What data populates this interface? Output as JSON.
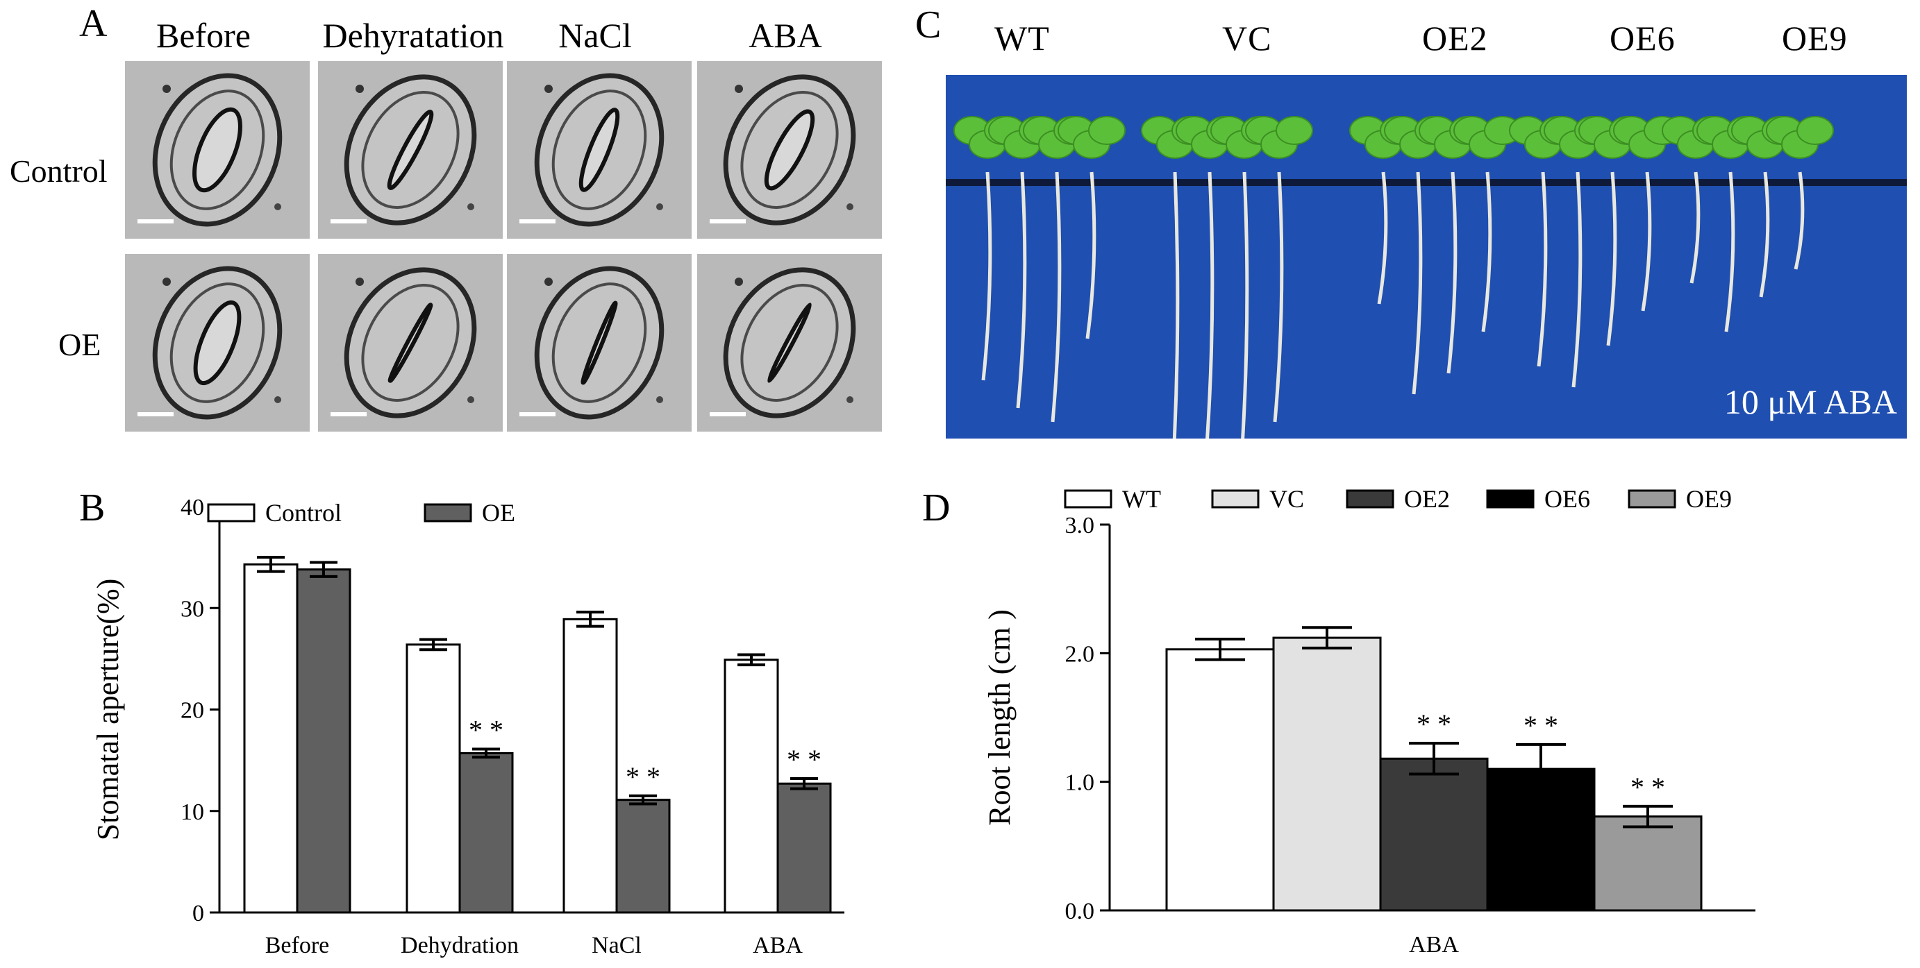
{
  "panels": {
    "a": {
      "letter": "A",
      "columns": [
        "Before",
        "Dehyratation",
        "NaCl",
        "ABA"
      ],
      "rows": [
        "Control",
        "OE"
      ]
    },
    "c": {
      "letter": "C",
      "genotypes": [
        "WT",
        "VC",
        "OE2",
        "OE6",
        "OE9"
      ],
      "treatment_label": "10 μM ABA",
      "colors": {
        "background": "#1f4fb0",
        "band": "#0f1a3a",
        "leaf": "#5bbf3a",
        "root": "#e8e8e0"
      }
    }
  },
  "chart_data": [
    {
      "panel": "B",
      "type": "bar",
      "categories": [
        "Before",
        "Dehydration",
        "NaCl",
        "ABA"
      ],
      "series": [
        {
          "name": "Control",
          "values": [
            34.3,
            26.4,
            28.9,
            24.9
          ],
          "errors": [
            0.7,
            0.5,
            0.7,
            0.5
          ],
          "color": "#ffffff",
          "sig": [
            "",
            "",
            "",
            ""
          ]
        },
        {
          "name": "OE",
          "values": [
            33.8,
            15.7,
            11.1,
            12.7
          ],
          "errors": [
            0.7,
            0.4,
            0.4,
            0.5
          ],
          "color": "#606060",
          "sig": [
            "",
            "**",
            "**",
            "**"
          ]
        }
      ],
      "xlabel": "",
      "ylabel": "Stomatal aperture(%)",
      "ylim": [
        0,
        40
      ],
      "yticks": [
        "0",
        "10",
        "20",
        "30",
        "40"
      ],
      "legend": "top"
    },
    {
      "panel": "D",
      "type": "bar",
      "categories": [
        "ABA"
      ],
      "series": [
        {
          "name": "WT",
          "values": [
            2.03
          ],
          "errors": [
            0.08
          ],
          "color": "#ffffff",
          "sig": [
            ""
          ]
        },
        {
          "name": "VC",
          "values": [
            2.12
          ],
          "errors": [
            0.08
          ],
          "color": "#e2e2e2",
          "sig": [
            ""
          ]
        },
        {
          "name": "OE2",
          "values": [
            1.18
          ],
          "errors": [
            0.12
          ],
          "color": "#3a3a3a",
          "sig": [
            "**"
          ]
        },
        {
          "name": "OE6",
          "values": [
            1.1
          ],
          "errors": [
            0.19
          ],
          "color": "#000000",
          "sig": [
            "**"
          ]
        },
        {
          "name": "OE9",
          "values": [
            0.73
          ],
          "errors": [
            0.08
          ],
          "color": "#9a9a9a",
          "sig": [
            "**"
          ]
        }
      ],
      "xlabel": "",
      "ylabel": "Root length (cm )",
      "ylim": [
        0,
        3
      ],
      "yticks": [
        "0.0",
        "1.0",
        "2.0",
        "3.0"
      ],
      "legend": "top"
    }
  ]
}
